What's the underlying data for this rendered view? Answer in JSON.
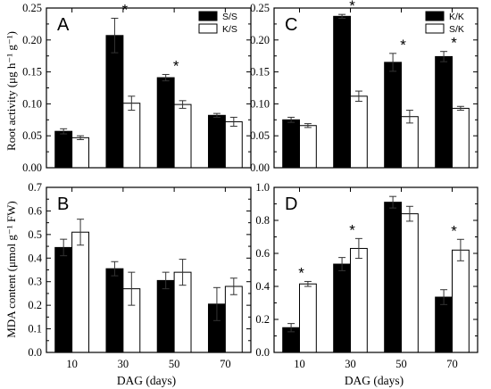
{
  "chart_data": [
    {
      "panel": "A",
      "type": "bar",
      "categories": [
        "10",
        "30",
        "50",
        "70"
      ],
      "series": [
        {
          "name": "S/S",
          "color": "#000000",
          "values": [
            0.057,
            0.207,
            0.141,
            0.082
          ],
          "errors": [
            0.004,
            0.027,
            0.005,
            0.003
          ]
        },
        {
          "name": "K/S",
          "color": "#ffffff",
          "values": [
            0.047,
            0.101,
            0.099,
            0.072
          ],
          "errors": [
            0.003,
            0.011,
            0.006,
            0.007
          ]
        }
      ],
      "significant": [
        false,
        true,
        true,
        false
      ],
      "ylim": [
        0,
        0.25
      ],
      "yticks": [
        "0.00",
        "0.05",
        "0.10",
        "0.15",
        "0.20",
        "0.25"
      ],
      "legend_position": "top-right"
    },
    {
      "panel": "C",
      "type": "bar",
      "categories": [
        "10",
        "30",
        "50",
        "70"
      ],
      "series": [
        {
          "name": "K/K",
          "color": "#000000",
          "values": [
            0.075,
            0.237,
            0.165,
            0.174
          ],
          "errors": [
            0.004,
            0.003,
            0.014,
            0.008
          ]
        },
        {
          "name": "S/K",
          "color": "#ffffff",
          "values": [
            0.066,
            0.112,
            0.08,
            0.093
          ],
          "errors": [
            0.003,
            0.008,
            0.01,
            0.003
          ]
        }
      ],
      "significant": [
        false,
        true,
        true,
        true
      ],
      "ylim": [
        0,
        0.25
      ],
      "yticks": [
        "0.00",
        "0.05",
        "0.10",
        "0.15",
        "0.20",
        "0.25"
      ],
      "legend_position": "top-right"
    },
    {
      "panel": "B",
      "type": "bar",
      "categories": [
        "10",
        "30",
        "50",
        "70"
      ],
      "series": [
        {
          "name": "",
          "color": "#000000",
          "values": [
            0.445,
            0.355,
            0.305,
            0.205
          ],
          "errors": [
            0.035,
            0.03,
            0.035,
            0.07
          ]
        },
        {
          "name": "",
          "color": "#ffffff",
          "values": [
            0.51,
            0.27,
            0.34,
            0.28
          ],
          "errors": [
            0.055,
            0.07,
            0.055,
            0.035
          ]
        }
      ],
      "significant": [
        false,
        false,
        false,
        false
      ],
      "ylim": [
        0,
        0.7
      ],
      "yticks": [
        "0.0",
        "0.1",
        "0.2",
        "0.3",
        "0.4",
        "0.5",
        "0.6",
        "0.7"
      ]
    },
    {
      "panel": "D",
      "type": "bar",
      "categories": [
        "10",
        "30",
        "50",
        "70"
      ],
      "series": [
        {
          "name": "",
          "color": "#000000",
          "values": [
            0.15,
            0.535,
            0.91,
            0.335
          ],
          "errors": [
            0.025,
            0.04,
            0.035,
            0.045
          ]
        },
        {
          "name": "",
          "color": "#ffffff",
          "values": [
            0.415,
            0.63,
            0.84,
            0.62
          ],
          "errors": [
            0.015,
            0.06,
            0.045,
            0.065
          ]
        }
      ],
      "significant": [
        true,
        true,
        false,
        true
      ],
      "ylim": [
        0,
        1.0
      ],
      "yticks": [
        "0.0",
        "0.2",
        "0.4",
        "0.6",
        "0.8",
        "1.0"
      ]
    }
  ],
  "labels": {
    "ylabel_top": "Root activity (μg h⁻¹ g⁻¹)",
    "ylabel_bottom": "MDA content (μmol g⁻¹ FW)",
    "xlabel": "DAG (days)",
    "significance_mark": "*"
  }
}
